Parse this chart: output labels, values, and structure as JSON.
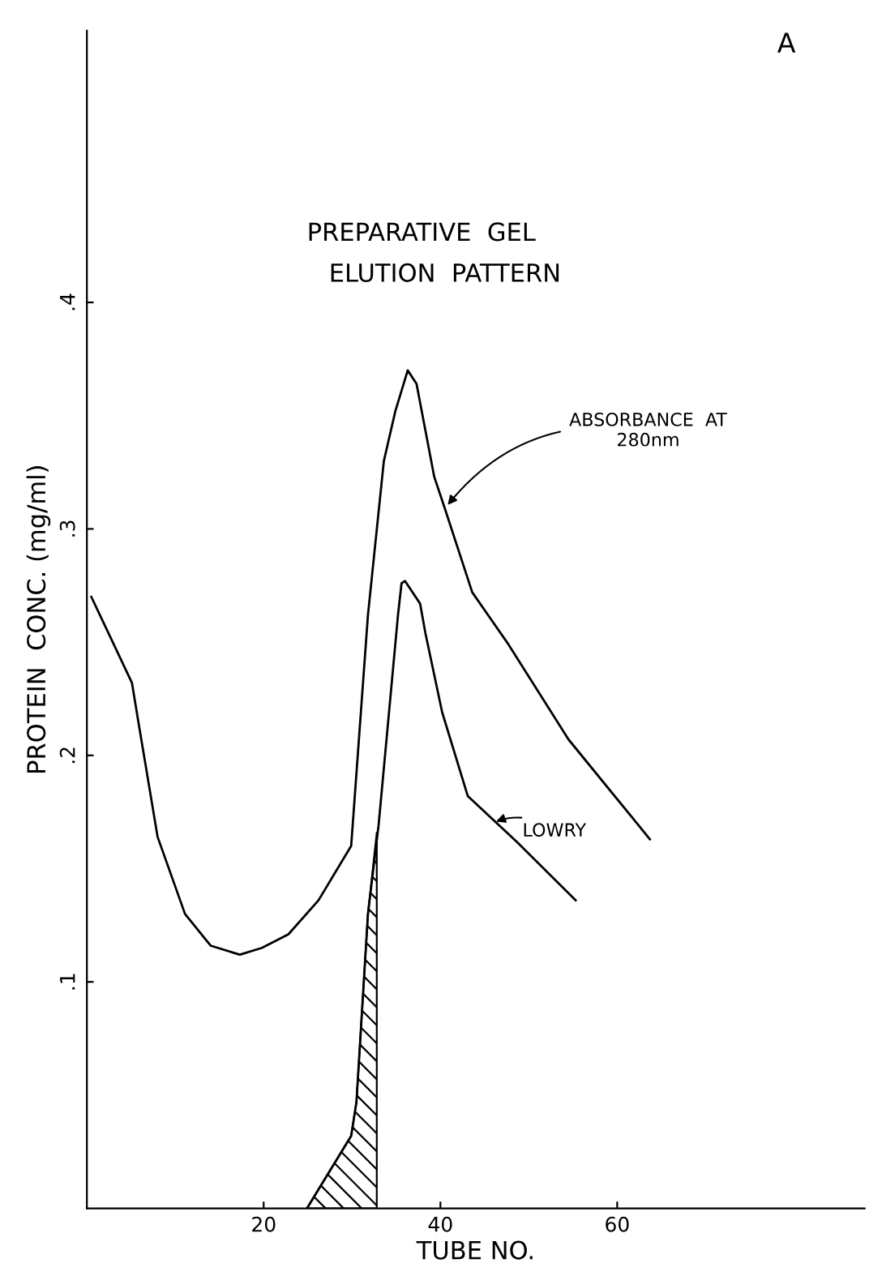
{
  "chart_data": {
    "type": "line",
    "title": "PREPARATIVE  GEL\n      ELUTION  PATTERN",
    "xlabel": "TUBE NO.",
    "ylabel": "PROTEIN  CONC. (mg/ml)",
    "xlim": [
      0,
      88
    ],
    "ylim": [
      0,
      0.52
    ],
    "xticks": [
      20,
      40,
      60
    ],
    "yticks": [
      {
        "value": 0.1,
        "label": ".1"
      },
      {
        "value": 0.2,
        "label": ".2"
      },
      {
        "value": 0.3,
        "label": ".3"
      },
      {
        "value": 0.4,
        "label": ".4"
      }
    ],
    "grid": false,
    "marker": "none",
    "line_style": "solid",
    "series": [
      {
        "color": "#000000",
        "x": [
          0.5,
          5.1,
          5.9,
          8.0,
          11.1,
          14.0,
          17.3,
          19.8,
          22.8,
          26.2,
          29.9,
          31.8,
          33.6,
          34.9,
          36.3,
          37.3,
          39.3,
          40.5,
          43.6,
          47.7,
          54.5,
          63.7
        ],
        "values": [
          0.27,
          0.232,
          0.213,
          0.164,
          0.13,
          0.116,
          0.112,
          0.115,
          0.121,
          0.136,
          0.16,
          0.262,
          0.33,
          0.352,
          0.37,
          0.364,
          0.323,
          0.309,
          0.272,
          0.249,
          0.207,
          0.163
        ]
      },
      {
        "color": "#000000",
        "x": [
          24.9,
          29.9,
          30.5,
          31.8,
          33.0,
          35.2,
          35.6,
          36.0,
          37.7,
          38.3,
          40.2,
          43.1,
          48.6,
          55.3
        ],
        "values": [
          0,
          0.032,
          0.047,
          0.13,
          0.169,
          0.262,
          0.276,
          0.277,
          0.267,
          0.254,
          0.219,
          0.182,
          0.162,
          0.136
        ]
      },
      {
        "type": "area",
        "color": "#000000",
        "x": [
          24.9,
          29.9,
          30.5,
          31.8,
          32.8
        ],
        "values": [
          0,
          0.032,
          0.047,
          0.13,
          0.166
        ]
      }
    ],
    "annotations": [
      {
        "text": "ABSORBANCE  AT\n280nm",
        "x": 40.5,
        "y": 0.309
      },
      {
        "text": "LOWRY",
        "x": 45.8,
        "y": 0.17
      },
      "A"
    ]
  }
}
